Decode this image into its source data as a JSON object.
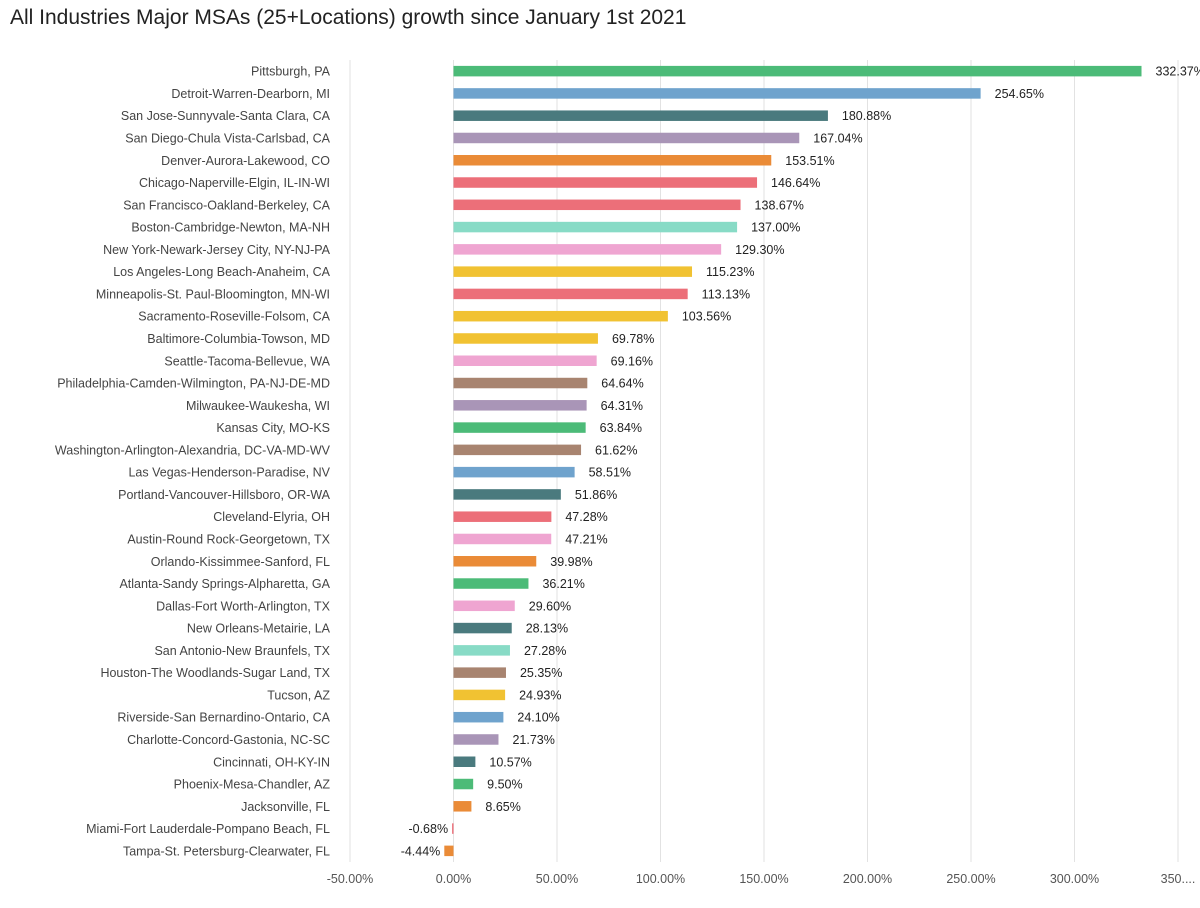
{
  "chart_data": {
    "type": "bar",
    "orientation": "horizontal",
    "title": "All Industries Major MSAs (25+Locations) growth since January 1st 2021",
    "xlabel": "",
    "ylabel": "",
    "xlim": [
      -50,
      350
    ],
    "x_ticks": [
      -50,
      0,
      50,
      100,
      150,
      200,
      250,
      300,
      350
    ],
    "x_tick_labels": [
      "-50.00%",
      "0.00%",
      "50.00%",
      "100.00%",
      "150.00%",
      "200.00%",
      "250.00%",
      "300.00%",
      "350...."
    ],
    "grid": "vertical",
    "legend": "none",
    "categories": [
      "Pittsburgh, PA",
      "Detroit-Warren-Dearborn, MI",
      "San Jose-Sunnyvale-Santa Clara, CA",
      "San Diego-Chula Vista-Carlsbad, CA",
      "Denver-Aurora-Lakewood, CO",
      "Chicago-Naperville-Elgin, IL-IN-WI",
      "San Francisco-Oakland-Berkeley, CA",
      "Boston-Cambridge-Newton, MA-NH",
      "New York-Newark-Jersey City, NY-NJ-PA",
      "Los Angeles-Long Beach-Anaheim, CA",
      "Minneapolis-St. Paul-Bloomington, MN-WI",
      "Sacramento-Roseville-Folsom, CA",
      "Baltimore-Columbia-Towson, MD",
      "Seattle-Tacoma-Bellevue, WA",
      "Philadelphia-Camden-Wilmington, PA-NJ-DE-MD",
      "Milwaukee-Waukesha, WI",
      "Kansas City, MO-KS",
      "Washington-Arlington-Alexandria, DC-VA-MD-WV",
      "Las Vegas-Henderson-Paradise, NV",
      "Portland-Vancouver-Hillsboro, OR-WA",
      "Cleveland-Elyria, OH",
      "Austin-Round Rock-Georgetown, TX",
      "Orlando-Kissimmee-Sanford, FL",
      "Atlanta-Sandy Springs-Alpharetta, GA",
      "Dallas-Fort Worth-Arlington, TX",
      "New Orleans-Metairie, LA",
      "San Antonio-New Braunfels, TX",
      "Houston-The Woodlands-Sugar Land, TX",
      "Tucson, AZ",
      "Riverside-San Bernardino-Ontario, CA",
      "Charlotte-Concord-Gastonia, NC-SC",
      "Cincinnati, OH-KY-IN",
      "Phoenix-Mesa-Chandler, AZ",
      "Jacksonville, FL",
      "Miami-Fort Lauderdale-Pompano Beach, FL",
      "Tampa-St. Petersburg-Clearwater, FL"
    ],
    "values": [
      332.37,
      254.65,
      180.88,
      167.04,
      153.51,
      146.64,
      138.67,
      137.0,
      129.3,
      115.23,
      113.13,
      103.56,
      69.78,
      69.16,
      64.64,
      64.31,
      63.84,
      61.62,
      58.51,
      51.86,
      47.28,
      47.21,
      39.98,
      36.21,
      29.6,
      28.13,
      27.28,
      25.35,
      24.93,
      24.1,
      21.73,
      10.57,
      9.5,
      8.65,
      -0.68,
      -4.44
    ],
    "value_labels": [
      "332.37%",
      "254.65%",
      "180.88%",
      "167.04%",
      "153.51%",
      "146.64%",
      "138.67%",
      "137.00%",
      "129.30%",
      "115.23%",
      "113.13%",
      "103.56%",
      "69.78%",
      "69.16%",
      "64.64%",
      "64.31%",
      "63.84%",
      "61.62%",
      "58.51%",
      "51.86%",
      "47.28%",
      "47.21%",
      "39.98%",
      "36.21%",
      "29.60%",
      "28.13%",
      "27.28%",
      "25.35%",
      "24.93%",
      "24.10%",
      "21.73%",
      "10.57%",
      "9.50%",
      "8.65%",
      "-0.68%",
      "-4.44%"
    ],
    "colors": [
      "#4cbb78",
      "#6fa3cd",
      "#4a7a7e",
      "#a995b7",
      "#ea8b37",
      "#ec6f79",
      "#ec6f79",
      "#88dbc6",
      "#efa5d1",
      "#f1c232",
      "#ec6f79",
      "#f1c232",
      "#f1c232",
      "#efa5d1",
      "#a88470",
      "#a995b7",
      "#4cbb78",
      "#a88470",
      "#6fa3cd",
      "#4a7a7e",
      "#ec6f79",
      "#efa5d1",
      "#ea8b37",
      "#4cbb78",
      "#efa5d1",
      "#4a7a7e",
      "#88dbc6",
      "#a88470",
      "#f1c232",
      "#6fa3cd",
      "#a995b7",
      "#4a7a7e",
      "#4cbb78",
      "#ea8b37",
      "#ec6f79",
      "#ea8b37"
    ]
  }
}
